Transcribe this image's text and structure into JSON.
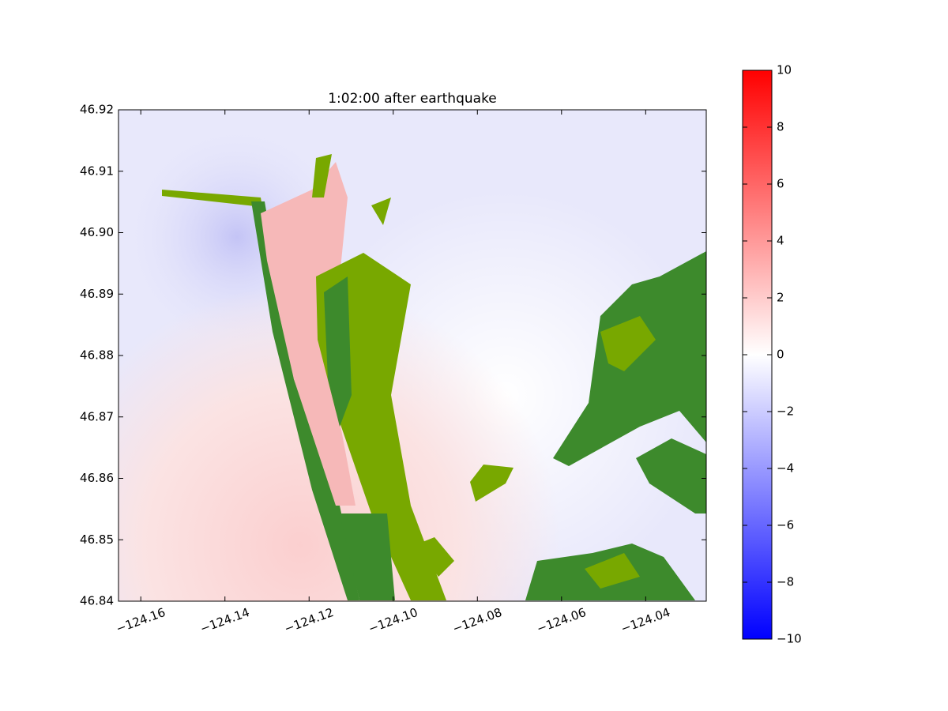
{
  "chart_data": {
    "type": "image",
    "title": "1:02:00 after earthquake",
    "xlim": [
      -124.1653,
      -124.0256
    ],
    "xticks": [
      {
        "value": -124.16,
        "label": "−124.16"
      },
      {
        "value": -124.14,
        "label": "−124.14"
      },
      {
        "value": -124.12,
        "label": "−124.12"
      },
      {
        "value": -124.1,
        "label": "−124.10"
      },
      {
        "value": -124.08,
        "label": "−124.08"
      },
      {
        "value": -124.06,
        "label": "−124.06"
      },
      {
        "value": -124.04,
        "label": "−124.04"
      }
    ],
    "ylim": [
      46.84,
      46.92
    ],
    "yticks": [
      46.84,
      46.85,
      46.86,
      46.87,
      46.88,
      46.89,
      {
        "value": 46.9,
        "label": "46.90"
      },
      46.91,
      46.92
    ],
    "colorbar": {
      "lim": [
        -10,
        10
      ],
      "colors": [
        "#0000ff",
        "#ffffff",
        "#ff0000"
      ],
      "ticks": [
        {
          "value": -10,
          "label": "−10"
        },
        {
          "value": -8,
          "label": "−8"
        },
        {
          "value": -6,
          "label": "−6"
        },
        {
          "value": -4,
          "label": "−4"
        },
        {
          "value": -2,
          "label": "−2"
        },
        0,
        2,
        4,
        6,
        8,
        10
      ]
    }
  }
}
